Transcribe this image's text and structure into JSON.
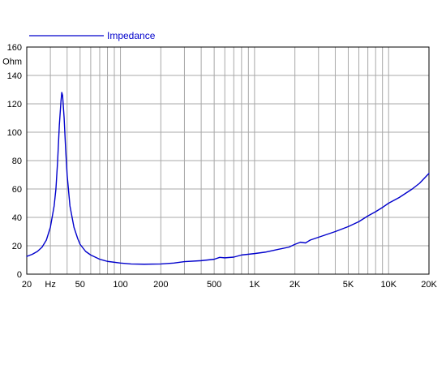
{
  "colors": {
    "series": "#0000cc",
    "grid": "#a8a8a8",
    "axis": "#000000",
    "background": "#ffffff"
  },
  "chart_data": {
    "type": "line",
    "title": "",
    "xlabel": "Hz",
    "ylabel": "Ohm",
    "x_scale": "log",
    "xlim": [
      20,
      20000
    ],
    "ylim": [
      0,
      160
    ],
    "grid": true,
    "legend_position": "top-left",
    "x_ticks": [
      {
        "value": 20,
        "label": "20"
      },
      {
        "value": 30,
        "label": "Hz"
      },
      {
        "value": 50,
        "label": "50"
      },
      {
        "value": 100,
        "label": "100"
      },
      {
        "value": 200,
        "label": "200"
      },
      {
        "value": 500,
        "label": "500"
      },
      {
        "value": 1000,
        "label": "1K"
      },
      {
        "value": 2000,
        "label": "2K"
      },
      {
        "value": 5000,
        "label": "5K"
      },
      {
        "value": 10000,
        "label": "10K"
      },
      {
        "value": 20000,
        "label": "20K"
      }
    ],
    "y_ticks": [
      {
        "value": 0,
        "label": "0"
      },
      {
        "value": 20,
        "label": "20"
      },
      {
        "value": 40,
        "label": "40"
      },
      {
        "value": 60,
        "label": "60"
      },
      {
        "value": 80,
        "label": "80"
      },
      {
        "value": 100,
        "label": "100"
      },
      {
        "value": 120,
        "label": "120"
      },
      {
        "value": 140,
        "label": "140"
      },
      {
        "value": 160,
        "label": "160"
      }
    ],
    "y_unit_label": "Ohm",
    "series": [
      {
        "name": "Impedance",
        "color": "#0000cc",
        "points": [
          [
            20,
            12.5
          ],
          [
            22,
            14
          ],
          [
            24,
            16
          ],
          [
            26,
            19
          ],
          [
            28,
            24
          ],
          [
            30,
            33
          ],
          [
            32,
            48
          ],
          [
            33,
            60
          ],
          [
            34,
            80
          ],
          [
            35,
            105
          ],
          [
            36,
            122
          ],
          [
            36.5,
            128
          ],
          [
            37,
            126
          ],
          [
            38,
            110
          ],
          [
            39,
            88
          ],
          [
            40,
            70
          ],
          [
            42,
            48
          ],
          [
            45,
            33
          ],
          [
            48,
            25
          ],
          [
            50,
            21
          ],
          [
            55,
            16
          ],
          [
            60,
            13.5
          ],
          [
            70,
            10.5
          ],
          [
            80,
            9
          ],
          [
            100,
            7.8
          ],
          [
            120,
            7.2
          ],
          [
            150,
            7
          ],
          [
            200,
            7.2
          ],
          [
            250,
            7.8
          ],
          [
            300,
            8.8
          ],
          [
            400,
            9.5
          ],
          [
            500,
            10.5
          ],
          [
            550,
            11.8
          ],
          [
            600,
            11.5
          ],
          [
            700,
            12
          ],
          [
            800,
            13.5
          ],
          [
            1000,
            14.5
          ],
          [
            1200,
            15.5
          ],
          [
            1500,
            17.5
          ],
          [
            1800,
            19
          ],
          [
            2000,
            21
          ],
          [
            2200,
            22.5
          ],
          [
            2400,
            22
          ],
          [
            2600,
            24
          ],
          [
            3000,
            26
          ],
          [
            4000,
            30
          ],
          [
            5000,
            33.5
          ],
          [
            6000,
            37
          ],
          [
            7000,
            41
          ],
          [
            8000,
            44
          ],
          [
            9000,
            47
          ],
          [
            10000,
            50
          ],
          [
            12000,
            54
          ],
          [
            15000,
            60
          ],
          [
            17000,
            64
          ],
          [
            20000,
            71
          ]
        ]
      }
    ]
  }
}
